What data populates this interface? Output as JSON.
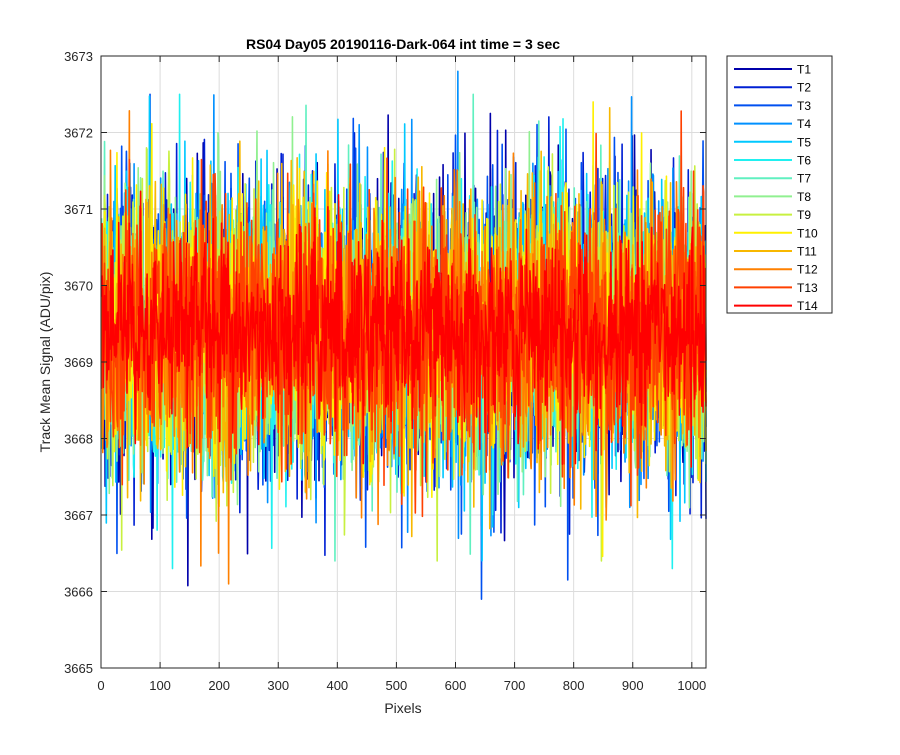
{
  "chart_data": {
    "type": "line",
    "title": "RS04 Day05 20190116-Dark-064 int time = 3 sec",
    "xlabel": "Pixels",
    "ylabel": "Track Mean Signal (ADU/pix)",
    "xlim": [
      0,
      1024
    ],
    "ylim": [
      3665,
      3673
    ],
    "xticks": [
      0,
      100,
      200,
      300,
      400,
      500,
      600,
      700,
      800,
      900,
      1000
    ],
    "yticks": [
      3665,
      3666,
      3667,
      3668,
      3669,
      3670,
      3671,
      3672,
      3673
    ],
    "grid": true,
    "legend_position": "outside-top-right",
    "x_range_points": [
      1,
      1024
    ],
    "series": [
      {
        "name": "T1",
        "color": "#0000AA",
        "mean": 3669.4,
        "std": 0.95,
        "min": 3665.6,
        "max": 3672.7
      },
      {
        "name": "T2",
        "color": "#0020D4",
        "mean": 3669.4,
        "std": 0.95,
        "min": 3665.8,
        "max": 3672.5
      },
      {
        "name": "T3",
        "color": "#0050F0",
        "mean": 3669.4,
        "std": 0.93,
        "min": 3665.9,
        "max": 3672.5
      },
      {
        "name": "T4",
        "color": "#0090FF",
        "mean": 3669.4,
        "std": 0.92,
        "min": 3666.2,
        "max": 3672.8
      },
      {
        "name": "T5",
        "color": "#00C8FF",
        "mean": 3669.4,
        "std": 0.9,
        "min": 3666.3,
        "max": 3672.6
      },
      {
        "name": "T6",
        "color": "#20F0F0",
        "mean": 3669.4,
        "std": 0.9,
        "min": 3666.3,
        "max": 3672.5
      },
      {
        "name": "T7",
        "color": "#60F0C0",
        "mean": 3669.4,
        "std": 0.88,
        "min": 3666.4,
        "max": 3672.5
      },
      {
        "name": "T8",
        "color": "#90F090",
        "mean": 3669.4,
        "std": 0.88,
        "min": 3666.4,
        "max": 3672.5
      },
      {
        "name": "T9",
        "color": "#C8F040",
        "mean": 3669.4,
        "std": 0.87,
        "min": 3666.4,
        "max": 3672.4
      },
      {
        "name": "T10",
        "color": "#FFF000",
        "mean": 3669.4,
        "std": 0.87,
        "min": 3665.9,
        "max": 3672.4
      },
      {
        "name": "T11",
        "color": "#F8B800",
        "mean": 3669.4,
        "std": 0.87,
        "min": 3666.2,
        "max": 3672.7
      },
      {
        "name": "T12",
        "color": "#FF8000",
        "mean": 3669.4,
        "std": 0.86,
        "min": 3666.0,
        "max": 3672.6
      },
      {
        "name": "T13",
        "color": "#FF4000",
        "mean": 3669.4,
        "std": 0.86,
        "min": 3665.4,
        "max": 3672.7
      },
      {
        "name": "T14",
        "color": "#FF0000",
        "mean": 3669.4,
        "std": 0.6,
        "min": 3665.7,
        "max": 3672.7
      }
    ]
  }
}
